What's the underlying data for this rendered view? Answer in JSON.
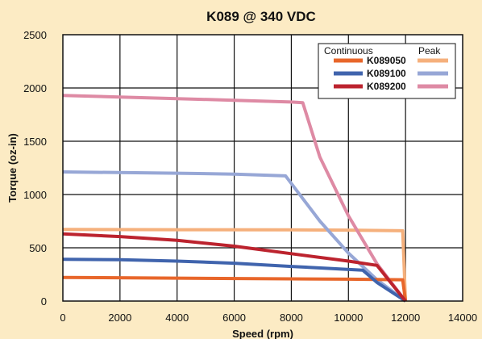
{
  "chart_data": {
    "type": "line",
    "title": "K089 @ 340 VDC",
    "xlabel": "Speed (rpm)",
    "ylabel": "Torque (oz-in)",
    "xlim": [
      0,
      14000
    ],
    "ylim": [
      0,
      2500
    ],
    "x_ticks": [
      "0",
      "2000",
      "4000",
      "6000",
      "8000",
      "10000",
      "12000",
      "14000"
    ],
    "y_ticks": [
      "0",
      "500",
      "1000",
      "1500",
      "2000",
      "2500"
    ],
    "x_tick_values": [
      0,
      2000,
      4000,
      6000,
      8000,
      10000,
      12000,
      14000
    ],
    "y_tick_values": [
      0,
      500,
      1000,
      1500,
      2000,
      2500
    ],
    "grid": true,
    "legend": {
      "placement": "top-right",
      "header_continuous": "Continuous",
      "header_peak": "Peak",
      "models": [
        "K089050",
        "K089100",
        "K089200"
      ]
    },
    "series": [
      {
        "model": "K089050",
        "kind": "continuous",
        "color": "#e8662a",
        "points": [
          [
            0,
            222
          ],
          [
            4000,
            215
          ],
          [
            8000,
            208
          ],
          [
            10000,
            205
          ],
          [
            11900,
            200
          ],
          [
            12000,
            0
          ]
        ]
      },
      {
        "model": "K089050",
        "kind": "peak",
        "color": "#f5b07c",
        "points": [
          [
            0,
            672
          ],
          [
            4000,
            670
          ],
          [
            8000,
            668
          ],
          [
            10000,
            666
          ],
          [
            11900,
            660
          ],
          [
            12000,
            0
          ]
        ]
      },
      {
        "model": "K089100",
        "kind": "continuous",
        "color": "#4064ad",
        "points": [
          [
            0,
            392
          ],
          [
            2000,
            388
          ],
          [
            4000,
            375
          ],
          [
            6000,
            355
          ],
          [
            8000,
            325
          ],
          [
            10500,
            290
          ],
          [
            11000,
            175
          ],
          [
            12000,
            0
          ]
        ]
      },
      {
        "model": "K089100",
        "kind": "peak",
        "color": "#97a7d6",
        "points": [
          [
            0,
            1212
          ],
          [
            4000,
            1200
          ],
          [
            6000,
            1192
          ],
          [
            7800,
            1175
          ],
          [
            9000,
            750
          ],
          [
            10000,
            450
          ],
          [
            11000,
            200
          ],
          [
            12000,
            0
          ]
        ]
      },
      {
        "model": "K089200",
        "kind": "continuous",
        "color": "#bc232e",
        "points": [
          [
            0,
            630
          ],
          [
            2000,
            605
          ],
          [
            4000,
            570
          ],
          [
            6000,
            515
          ],
          [
            8000,
            445
          ],
          [
            10000,
            375
          ],
          [
            11000,
            335
          ],
          [
            12000,
            0
          ]
        ]
      },
      {
        "model": "K089200",
        "kind": "peak",
        "color": "#de8aa4",
        "points": [
          [
            0,
            1930
          ],
          [
            2000,
            1915
          ],
          [
            4000,
            1900
          ],
          [
            6000,
            1885
          ],
          [
            8000,
            1868
          ],
          [
            8400,
            1862
          ],
          [
            9000,
            1350
          ],
          [
            10000,
            800
          ],
          [
            11000,
            350
          ],
          [
            12000,
            0
          ]
        ]
      }
    ]
  }
}
